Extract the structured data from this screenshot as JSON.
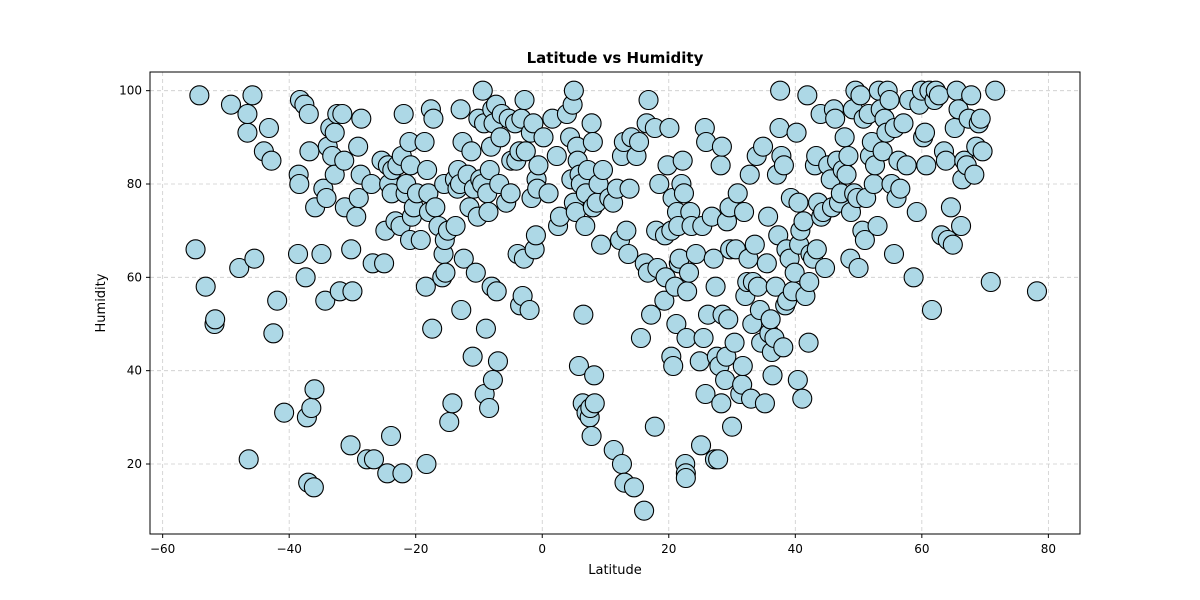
{
  "chart_data": {
    "type": "scatter",
    "title": "Latitude vs Humidity",
    "xlabel": "Latitude",
    "ylabel": "Humidity",
    "xlim": [
      -62,
      85
    ],
    "ylim": [
      5,
      104
    ],
    "xticks": [
      -60,
      -40,
      -20,
      0,
      20,
      40,
      60,
      80
    ],
    "yticks": [
      20,
      40,
      60,
      80,
      100
    ],
    "grid": true,
    "marker_fill": "#add8e6",
    "marker_edge": "#000000",
    "points": [
      [
        -54.8,
        66
      ],
      [
        -54.2,
        99
      ],
      [
        -53.2,
        58
      ],
      [
        -51.8,
        50
      ],
      [
        -51.7,
        51
      ],
      [
        -49.2,
        97
      ],
      [
        -47.9,
        62
      ],
      [
        -46.6,
        91
      ],
      [
        -46.6,
        95
      ],
      [
        -46.4,
        21
      ],
      [
        -45.8,
        99
      ],
      [
        -45.5,
        64
      ],
      [
        -44,
        87
      ],
      [
        -43.2,
        92
      ],
      [
        -42.8,
        85
      ],
      [
        -42.5,
        48
      ],
      [
        -41.9,
        55
      ],
      [
        -40.8,
        31
      ],
      [
        -38.6,
        65
      ],
      [
        -38.5,
        82
      ],
      [
        -38.4,
        80
      ],
      [
        -38.3,
        98
      ],
      [
        -37.6,
        97
      ],
      [
        -37.4,
        60
      ],
      [
        -37.2,
        30
      ],
      [
        -37,
        16
      ],
      [
        -36.9,
        95
      ],
      [
        -36.8,
        87
      ],
      [
        -36.5,
        32
      ],
      [
        -36.1,
        15
      ],
      [
        -36,
        36
      ],
      [
        -35.9,
        75
      ],
      [
        -34.9,
        65
      ],
      [
        -34.6,
        79
      ],
      [
        -34.3,
        55
      ],
      [
        -34.1,
        77
      ],
      [
        -33.9,
        88
      ],
      [
        -33.5,
        92
      ],
      [
        -33.2,
        86
      ],
      [
        -32.8,
        82
      ],
      [
        -32.8,
        91
      ],
      [
        -32.4,
        95
      ],
      [
        -32,
        57
      ],
      [
        -31.6,
        95
      ],
      [
        -31.3,
        85
      ],
      [
        -31.2,
        75
      ],
      [
        -30.3,
        24
      ],
      [
        -30.2,
        66
      ],
      [
        -30,
        57
      ],
      [
        -29.4,
        73
      ],
      [
        -29.1,
        88
      ],
      [
        -29,
        77
      ],
      [
        -28.7,
        82
      ],
      [
        -28.6,
        94
      ],
      [
        -27.7,
        21
      ],
      [
        -27,
        80
      ],
      [
        -26.8,
        63
      ],
      [
        -26.6,
        21
      ],
      [
        -25.4,
        85
      ],
      [
        -25,
        63
      ],
      [
        -24.8,
        70
      ],
      [
        -24.5,
        18
      ],
      [
        -24.4,
        84
      ],
      [
        -24.2,
        80
      ],
      [
        -23.9,
        26
      ],
      [
        -23.8,
        78
      ],
      [
        -23.7,
        83
      ],
      [
        -23.2,
        72
      ],
      [
        -22.9,
        84
      ],
      [
        -22.4,
        71
      ],
      [
        -22.2,
        86
      ],
      [
        -22.1,
        18
      ],
      [
        -21.9,
        95
      ],
      [
        -21.6,
        78
      ],
      [
        -21.5,
        80
      ],
      [
        -21,
        89
      ],
      [
        -20.9,
        68
      ],
      [
        -20.8,
        84
      ],
      [
        -20.6,
        73
      ],
      [
        -20.3,
        75
      ],
      [
        -19.8,
        78
      ],
      [
        -19.2,
        68
      ],
      [
        -18.6,
        89
      ],
      [
        -18.4,
        58
      ],
      [
        -18.3,
        20
      ],
      [
        -18.2,
        83
      ],
      [
        -18,
        78
      ],
      [
        -17.9,
        74
      ],
      [
        -17.6,
        96
      ],
      [
        -17.4,
        49
      ],
      [
        -17.2,
        94
      ],
      [
        -16.9,
        75
      ],
      [
        -16.4,
        71
      ],
      [
        -15.8,
        60
      ],
      [
        -15.6,
        65
      ],
      [
        -15.5,
        80
      ],
      [
        -15.4,
        68
      ],
      [
        -15.3,
        61
      ],
      [
        -14.9,
        70
      ],
      [
        -14.7,
        29
      ],
      [
        -14.2,
        33
      ],
      [
        -13.8,
        81
      ],
      [
        -13.7,
        71
      ],
      [
        -13.4,
        79
      ],
      [
        -13.3,
        83
      ],
      [
        -13,
        80
      ],
      [
        -12.9,
        96
      ],
      [
        -12.8,
        53
      ],
      [
        -12.6,
        89
      ],
      [
        -12.4,
        64
      ],
      [
        -11.8,
        82
      ],
      [
        -11.5,
        75
      ],
      [
        -11.2,
        87
      ],
      [
        -11,
        43
      ],
      [
        -10.8,
        79
      ],
      [
        -10.5,
        61
      ],
      [
        -10.2,
        73
      ],
      [
        -10.1,
        94
      ],
      [
        -9.8,
        81
      ],
      [
        -9.5,
        80
      ],
      [
        -9.4,
        100
      ],
      [
        -9.2,
        93
      ],
      [
        -9.1,
        35
      ],
      [
        -8.9,
        49
      ],
      [
        -8.7,
        78
      ],
      [
        -8.5,
        74
      ],
      [
        -8.4,
        32
      ],
      [
        -8.3,
        83
      ],
      [
        -8.1,
        88
      ],
      [
        -8,
        58
      ],
      [
        -7.9,
        96
      ],
      [
        -7.8,
        38
      ],
      [
        -7.7,
        93
      ],
      [
        -7.3,
        97
      ],
      [
        -7.2,
        57
      ],
      [
        -7,
        42
      ],
      [
        -6.8,
        80
      ],
      [
        -6.6,
        90
      ],
      [
        -6.4,
        95
      ],
      [
        -5.7,
        76
      ],
      [
        -5.3,
        94
      ],
      [
        -5,
        78
      ],
      [
        -4.9,
        85
      ],
      [
        -4.3,
        93
      ],
      [
        -4.1,
        85
      ],
      [
        -3.9,
        65
      ],
      [
        -3.6,
        87
      ],
      [
        -3.5,
        54
      ],
      [
        -3.3,
        94
      ],
      [
        -3.1,
        56
      ],
      [
        -2.9,
        64
      ],
      [
        -2.8,
        98
      ],
      [
        -2.6,
        87
      ],
      [
        -2,
        53
      ],
      [
        -1.8,
        91
      ],
      [
        -1.7,
        77
      ],
      [
        -1.4,
        93
      ],
      [
        -1.2,
        66
      ],
      [
        -1,
        69
      ],
      [
        -0.9,
        81
      ],
      [
        -0.8,
        79
      ],
      [
        -0.6,
        84
      ],
      [
        0.2,
        90
      ],
      [
        1,
        78
      ],
      [
        1.6,
        94
      ],
      [
        2.3,
        86
      ],
      [
        2.5,
        71
      ],
      [
        2.8,
        73
      ],
      [
        3.9,
        95
      ],
      [
        4.4,
        90
      ],
      [
        4.6,
        81
      ],
      [
        4.8,
        97
      ],
      [
        5,
        100
      ],
      [
        5,
        76
      ],
      [
        5.3,
        74
      ],
      [
        5.5,
        88
      ],
      [
        5.6,
        85
      ],
      [
        5.9,
        82
      ],
      [
        5.8,
        41
      ],
      [
        6.1,
        80
      ],
      [
        6.4,
        33
      ],
      [
        6.5,
        52
      ],
      [
        6.8,
        71
      ],
      [
        6.9,
        78
      ],
      [
        7,
        31
      ],
      [
        7.2,
        83
      ],
      [
        7.5,
        30
      ],
      [
        7.6,
        32
      ],
      [
        7.8,
        26
      ],
      [
        7.8,
        93
      ],
      [
        8,
        75
      ],
      [
        8,
        89
      ],
      [
        8.2,
        39
      ],
      [
        8.3,
        33
      ],
      [
        8.6,
        76
      ],
      [
        8.9,
        80
      ],
      [
        9.3,
        67
      ],
      [
        9.6,
        83
      ],
      [
        10.6,
        77
      ],
      [
        11.2,
        76
      ],
      [
        11.3,
        23
      ],
      [
        11.8,
        79
      ],
      [
        12.3,
        68
      ],
      [
        12.6,
        20
      ],
      [
        12.6,
        86
      ],
      [
        12.9,
        89
      ],
      [
        13,
        16
      ],
      [
        13.3,
        70
      ],
      [
        13.6,
        65
      ],
      [
        13.8,
        79
      ],
      [
        14.1,
        90
      ],
      [
        14.5,
        15
      ],
      [
        14.9,
        86
      ],
      [
        15.3,
        89
      ],
      [
        15.6,
        47
      ],
      [
        16.1,
        10
      ],
      [
        16.2,
        63
      ],
      [
        16.5,
        93
      ],
      [
        16.7,
        61
      ],
      [
        16.8,
        98
      ],
      [
        17.2,
        52
      ],
      [
        17.8,
        28
      ],
      [
        17.8,
        92
      ],
      [
        18,
        70
      ],
      [
        18.2,
        62
      ],
      [
        18.5,
        80
      ],
      [
        19.3,
        55
      ],
      [
        19.4,
        69
      ],
      [
        19.5,
        60
      ],
      [
        19.8,
        84
      ],
      [
        20.1,
        92
      ],
      [
        20.4,
        70
      ],
      [
        20.4,
        43
      ],
      [
        20.6,
        77
      ],
      [
        20.7,
        41
      ],
      [
        21,
        58
      ],
      [
        21.2,
        50
      ],
      [
        21.3,
        74
      ],
      [
        21.5,
        71
      ],
      [
        21.6,
        63
      ],
      [
        21.7,
        64
      ],
      [
        22,
        80
      ],
      [
        22.2,
        85
      ],
      [
        22.4,
        78
      ],
      [
        22.6,
        20
      ],
      [
        22.7,
        18
      ],
      [
        22.7,
        17
      ],
      [
        22.8,
        47
      ],
      [
        22.9,
        57
      ],
      [
        23.2,
        61
      ],
      [
        23.4,
        74
      ],
      [
        23.6,
        71
      ],
      [
        24.3,
        65
      ],
      [
        24.9,
        42
      ],
      [
        25.1,
        24
      ],
      [
        25.3,
        71
      ],
      [
        25.5,
        47
      ],
      [
        25.7,
        92
      ],
      [
        25.8,
        35
      ],
      [
        25.9,
        89
      ],
      [
        26.2,
        52
      ],
      [
        26.8,
        73
      ],
      [
        27.1,
        64
      ],
      [
        27.3,
        21
      ],
      [
        27.4,
        58
      ],
      [
        27.6,
        43
      ],
      [
        27.8,
        21
      ],
      [
        28,
        41
      ],
      [
        28.2,
        84
      ],
      [
        28.3,
        33
      ],
      [
        28.4,
        88
      ],
      [
        28.5,
        52
      ],
      [
        28.9,
        38
      ],
      [
        29.1,
        43
      ],
      [
        29.2,
        72
      ],
      [
        29.4,
        51
      ],
      [
        29.6,
        75
      ],
      [
        29.7,
        66
      ],
      [
        30,
        28
      ],
      [
        30.4,
        46
      ],
      [
        30.6,
        66
      ],
      [
        30.9,
        78
      ],
      [
        31.3,
        35
      ],
      [
        31.6,
        37
      ],
      [
        31.7,
        41
      ],
      [
        31.9,
        74
      ],
      [
        32.1,
        56
      ],
      [
        32.4,
        59
      ],
      [
        32.6,
        64
      ],
      [
        32.8,
        82
      ],
      [
        33,
        34
      ],
      [
        33.2,
        50
      ],
      [
        33.3,
        59
      ],
      [
        33.6,
        67
      ],
      [
        33.9,
        86
      ],
      [
        34.1,
        58
      ],
      [
        34.4,
        53
      ],
      [
        34.6,
        46
      ],
      [
        34.9,
        88
      ],
      [
        35.2,
        33
      ],
      [
        35.5,
        63
      ],
      [
        35.7,
        73
      ],
      [
        35.9,
        48
      ],
      [
        36.1,
        51
      ],
      [
        36.3,
        44
      ],
      [
        36.4,
        39
      ],
      [
        36.7,
        47
      ],
      [
        36.9,
        58
      ],
      [
        37.1,
        82
      ],
      [
        37.3,
        69
      ],
      [
        37.5,
        92
      ],
      [
        37.6,
        100
      ],
      [
        37.8,
        86
      ],
      [
        38.1,
        45
      ],
      [
        38.2,
        84
      ],
      [
        38.4,
        54
      ],
      [
        38.6,
        66
      ],
      [
        38.7,
        55
      ],
      [
        39.1,
        64
      ],
      [
        39.3,
        77
      ],
      [
        39.6,
        57
      ],
      [
        39.9,
        61
      ],
      [
        40.2,
        91
      ],
      [
        40.4,
        38
      ],
      [
        40.5,
        76
      ],
      [
        40.6,
        67
      ],
      [
        40.8,
        70
      ],
      [
        41.1,
        34
      ],
      [
        41.3,
        72
      ],
      [
        41.6,
        56
      ],
      [
        41.9,
        99
      ],
      [
        42.1,
        46
      ],
      [
        42.2,
        59
      ],
      [
        42.4,
        65
      ],
      [
        42.8,
        64
      ],
      [
        43.1,
        84
      ],
      [
        43.3,
        86
      ],
      [
        43.4,
        66
      ],
      [
        43.6,
        76
      ],
      [
        44,
        95
      ],
      [
        44.1,
        73
      ],
      [
        44.4,
        74
      ],
      [
        44.7,
        62
      ],
      [
        45.2,
        84
      ],
      [
        45.6,
        81
      ],
      [
        45.8,
        75
      ],
      [
        46.1,
        96
      ],
      [
        46.3,
        94
      ],
      [
        46.6,
        85
      ],
      [
        46.9,
        76
      ],
      [
        47.2,
        78
      ],
      [
        47.5,
        83
      ],
      [
        47.8,
        90
      ],
      [
        48.1,
        82
      ],
      [
        48.4,
        86
      ],
      [
        48.7,
        64
      ],
      [
        48.8,
        74
      ],
      [
        49.1,
        96
      ],
      [
        49.3,
        78
      ],
      [
        49.5,
        100
      ],
      [
        49.8,
        77
      ],
      [
        50,
        62
      ],
      [
        50.3,
        99
      ],
      [
        50.6,
        70
      ],
      [
        50.8,
        94
      ],
      [
        51,
        68
      ],
      [
        51.2,
        77
      ],
      [
        51.6,
        95
      ],
      [
        51.8,
        86
      ],
      [
        52.1,
        89
      ],
      [
        52.4,
        80
      ],
      [
        52.6,
        84
      ],
      [
        53,
        71
      ],
      [
        53.2,
        100
      ],
      [
        53.5,
        96
      ],
      [
        53.8,
        87
      ],
      [
        54.1,
        94
      ],
      [
        54.4,
        91
      ],
      [
        54.6,
        100
      ],
      [
        54.9,
        98
      ],
      [
        55.2,
        80
      ],
      [
        55.6,
        65
      ],
      [
        55.7,
        92
      ],
      [
        56,
        77
      ],
      [
        56.3,
        85
      ],
      [
        56.6,
        79
      ],
      [
        57.1,
        93
      ],
      [
        57.6,
        84
      ],
      [
        58,
        98
      ],
      [
        58.7,
        60
      ],
      [
        59.2,
        74
      ],
      [
        59.6,
        97
      ],
      [
        60,
        100
      ],
      [
        60.2,
        90
      ],
      [
        60.5,
        91
      ],
      [
        60.7,
        84
      ],
      [
        61.2,
        100
      ],
      [
        61.6,
        53
      ],
      [
        62,
        98
      ],
      [
        62.2,
        100
      ],
      [
        62.7,
        99
      ],
      [
        63.1,
        69
      ],
      [
        63.5,
        87
      ],
      [
        63.8,
        85
      ],
      [
        64.1,
        68
      ],
      [
        64.6,
        75
      ],
      [
        64.9,
        67
      ],
      [
        65.2,
        92
      ],
      [
        65.5,
        100
      ],
      [
        65.8,
        96
      ],
      [
        66.2,
        71
      ],
      [
        66.4,
        81
      ],
      [
        66.7,
        85
      ],
      [
        67.1,
        84
      ],
      [
        67.4,
        94
      ],
      [
        67.8,
        99
      ],
      [
        68.3,
        82
      ],
      [
        68.6,
        88
      ],
      [
        69,
        93
      ],
      [
        69.3,
        94
      ],
      [
        69.6,
        87
      ],
      [
        70.9,
        59
      ],
      [
        71.6,
        100
      ],
      [
        78.2,
        57
      ]
    ]
  }
}
